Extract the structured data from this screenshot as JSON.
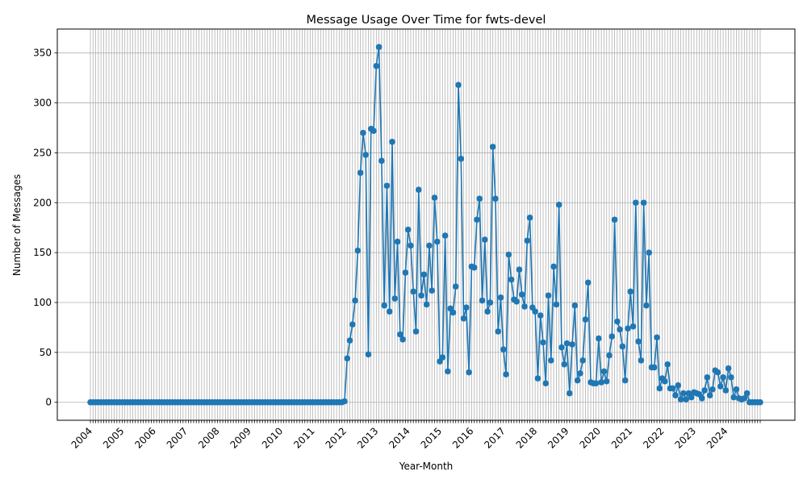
{
  "chart_data": {
    "type": "line",
    "title": "Message Usage Over Time for fwts-devel",
    "xlabel": "Year-Month",
    "ylabel": "Number of Messages",
    "x_tick_labels": [
      "2004",
      "2005",
      "2006",
      "2007",
      "2008",
      "2009",
      "2010",
      "2011",
      "2012",
      "2013",
      "2014",
      "2015",
      "2016",
      "2017",
      "2018",
      "2019",
      "2020",
      "2021",
      "2022",
      "2023",
      "2024"
    ],
    "y_ticks": [
      0,
      50,
      100,
      150,
      200,
      250,
      300,
      350
    ],
    "ylim": [
      -18,
      374
    ],
    "grid": true,
    "line_color": "#1f77b4",
    "start_month": "2004-01",
    "series": [
      {
        "values": [
          0,
          0,
          0,
          0,
          0,
          0,
          0,
          0,
          0,
          0,
          0,
          0,
          0,
          0,
          0,
          0,
          0,
          0,
          0,
          0,
          0,
          0,
          0,
          0,
          0,
          0,
          0,
          0,
          0,
          0,
          0,
          0,
          0,
          0,
          0,
          0,
          0,
          0,
          0,
          0,
          0,
          0,
          0,
          0,
          0,
          0,
          0,
          0,
          0,
          0,
          0,
          0,
          0,
          0,
          0,
          0,
          0,
          0,
          0,
          0,
          0,
          0,
          0,
          0,
          0,
          0,
          0,
          0,
          0,
          0,
          0,
          0,
          0,
          0,
          0,
          0,
          0,
          0,
          0,
          0,
          0,
          0,
          0,
          0,
          0,
          0,
          0,
          0,
          0,
          0,
          0,
          0,
          0,
          0,
          0,
          0,
          1,
          44,
          62,
          78,
          102,
          152,
          230,
          270,
          248,
          48,
          274,
          272,
          337,
          356,
          242,
          97,
          217,
          91,
          261,
          104,
          161,
          68,
          63,
          130,
          173,
          157,
          111,
          71,
          213,
          107,
          128,
          98,
          157,
          112,
          205,
          161,
          41,
          45,
          167,
          31,
          94,
          90,
          116,
          318,
          244,
          84,
          95,
          30,
          136,
          135,
          183,
          204,
          102,
          163,
          91,
          100,
          256,
          204,
          71,
          105,
          53,
          28,
          148,
          123,
          103,
          101,
          133,
          108,
          96,
          162,
          185,
          95,
          91,
          24,
          87,
          60,
          19,
          107,
          42,
          136,
          98,
          198,
          55,
          38,
          59,
          9,
          58,
          97,
          22,
          29,
          42,
          83,
          120,
          20,
          19,
          19,
          64,
          20,
          31,
          21,
          47,
          66,
          183,
          81,
          73,
          56,
          22,
          74,
          111,
          76,
          200,
          61,
          42,
          200,
          97,
          150,
          35,
          35,
          65,
          14,
          24,
          21,
          38,
          14,
          14,
          7,
          17,
          3,
          9,
          3,
          9,
          5,
          10,
          9,
          8,
          4,
          12,
          25,
          7,
          13,
          32,
          30,
          16,
          25,
          12,
          34,
          25,
          5,
          13,
          4,
          3,
          4,
          9,
          0,
          0,
          0,
          0,
          0
        ]
      }
    ]
  }
}
